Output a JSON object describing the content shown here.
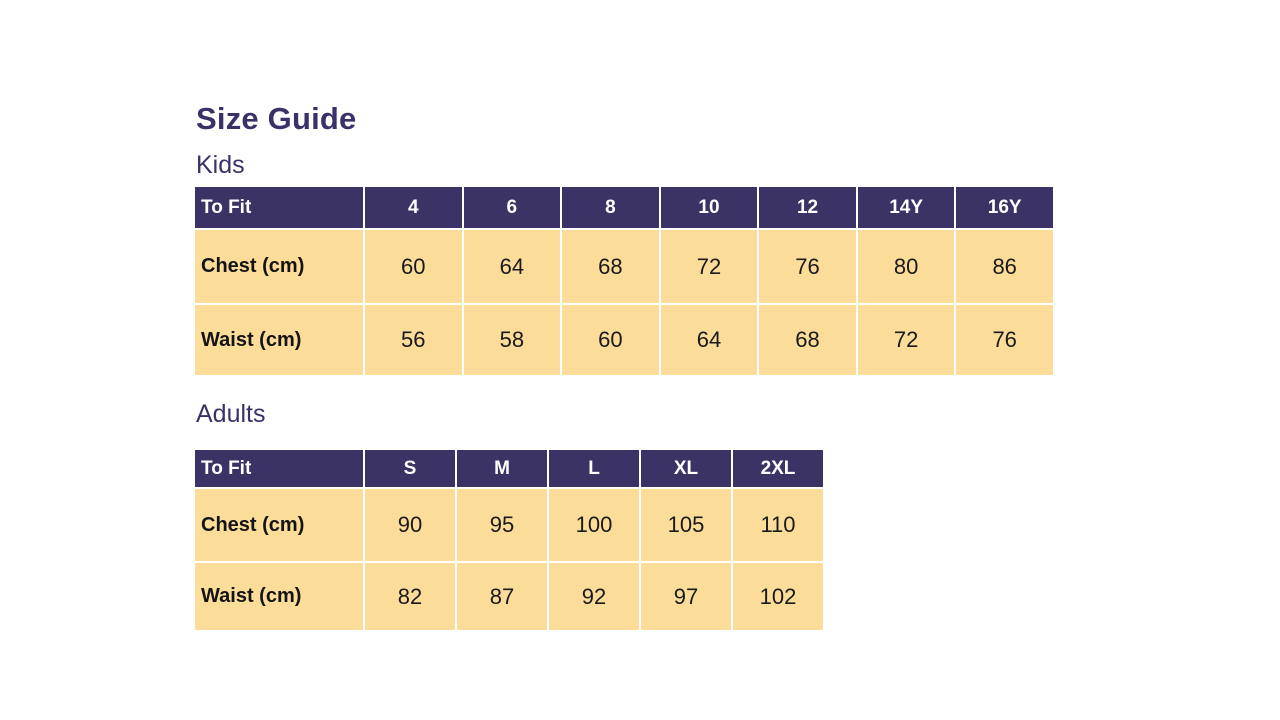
{
  "page": {
    "title": "Size Guide"
  },
  "colors": {
    "header_bg": "#3B3365",
    "cell_bg": "#FCDC99",
    "heading_text": "#3B3169",
    "header_text": "#FFFFFF",
    "cell_text": "#1A1A1A"
  },
  "kids": {
    "section_label": "Kids",
    "columns": [
      "To Fit",
      "4",
      "6",
      "8",
      "10",
      "12",
      "14Y",
      "16Y"
    ],
    "rows": {
      "chest": {
        "label": "Chest (cm)",
        "values": [
          "60",
          "64",
          "68",
          "72",
          "76",
          "80",
          "86"
        ]
      },
      "waist": {
        "label": "Waist (cm)",
        "values": [
          "56",
          "58",
          "60",
          "64",
          "68",
          "72",
          "76"
        ]
      }
    }
  },
  "adults": {
    "section_label": "Adults",
    "columns": [
      "To Fit",
      "S",
      "M",
      "L",
      "XL",
      "2XL"
    ],
    "rows": {
      "chest": {
        "label": "Chest (cm)",
        "values": [
          "90",
          "95",
          "100",
          "105",
          "110"
        ]
      },
      "waist": {
        "label": "Waist (cm)",
        "values": [
          "82",
          "87",
          "92",
          "97",
          "102"
        ]
      }
    }
  }
}
